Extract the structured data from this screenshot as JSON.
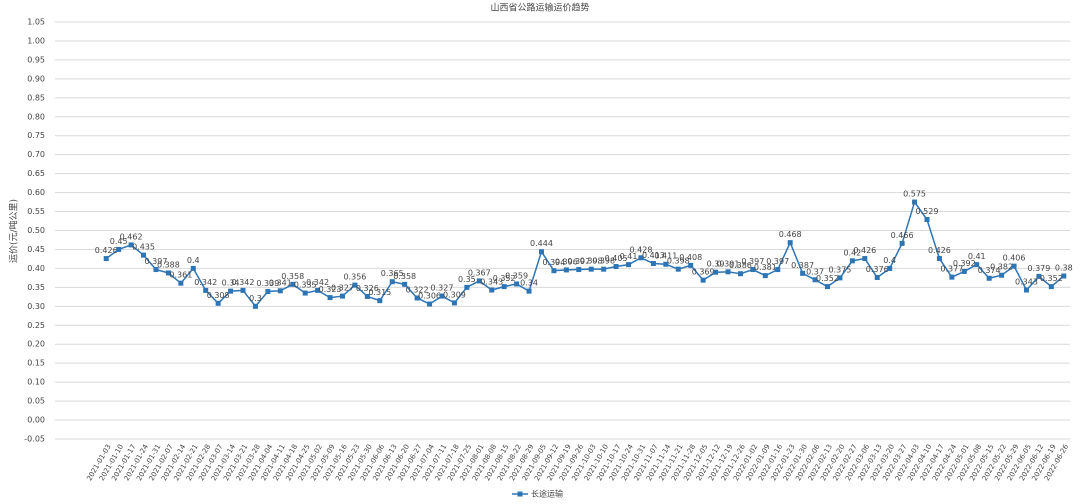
{
  "chart_data": {
    "type": "line",
    "title": "山西省公路运输运价趋势",
    "y_label": "运价(元/吨公里)",
    "categories": [
      "2021-01-03",
      "2021-01-10",
      "2021-01-17",
      "2021-01-24",
      "2021-01-31",
      "2021-02-07",
      "2021-02-14",
      "2021-02-21",
      "2021-02-28",
      "2021-03-07",
      "2021-03-14",
      "2021-03-21",
      "2021-03-28",
      "2021-04-04",
      "2021-04-11",
      "2021-04-18",
      "2021-04-25",
      "2021-05-02",
      "2021-05-09",
      "2021-05-16",
      "2021-05-23",
      "2021-05-30",
      "2021-06-06",
      "2021-06-13",
      "2021-06-20",
      "2021-06-27",
      "2021-07-04",
      "2021-07-11",
      "2021-07-18",
      "2021-07-25",
      "2021-08-01",
      "2021-08-08",
      "2021-08-15",
      "2021-08-22",
      "2021-08-29",
      "2021-09-05",
      "2021-09-12",
      "2021-09-19",
      "2021-09-26",
      "2021-10-03",
      "2021-10-10",
      "2021-10-17",
      "2021-10-24",
      "2021-10-31",
      "2021-11-07",
      "2021-11-14",
      "2021-11-21",
      "2021-11-28",
      "2021-12-05",
      "2021-12-12",
      "2021-12-19",
      "2021-12-26",
      "2022-01-02",
      "2022-01-09",
      "2022-01-16",
      "2022-01-23",
      "2022-01-30",
      "2022-02-06",
      "2022-02-13",
      "2022-02-20",
      "2022-02-27",
      "2022-03-06",
      "2022-03-13",
      "2022-03-20",
      "2022-03-27",
      "2022-04-03",
      "2022-04-10",
      "2022-04-17",
      "2022-04-24",
      "2022-05-01",
      "2022-05-08",
      "2022-05-15",
      "2022-05-22",
      "2022-05-29",
      "2022-06-05",
      "2022-06-12",
      "2022-06-19",
      "2022-06-26"
    ],
    "series": [
      {
        "name": "长途运输",
        "color": "#2e75b6",
        "values": [
          0.426,
          0.45,
          0.462,
          0.435,
          0.397,
          0.388,
          0.361,
          0.4,
          0.342,
          0.308,
          0.34,
          0.342,
          0.3,
          0.339,
          0.341,
          0.358,
          0.335,
          0.342,
          0.323,
          0.327,
          0.356,
          0.326,
          0.315,
          0.365,
          0.358,
          0.322,
          0.306,
          0.327,
          0.309,
          0.35,
          0.367,
          0.343,
          0.352,
          0.359,
          0.34,
          0.444,
          0.394,
          0.396,
          0.397,
          0.398,
          0.398,
          0.405,
          0.41,
          0.428,
          0.413,
          0.411,
          0.398,
          0.408,
          0.369,
          0.39,
          0.391,
          0.386,
          0.397,
          0.381,
          0.397,
          0.468,
          0.387,
          0.37,
          0.352,
          0.375,
          0.42,
          0.426,
          0.376,
          0.4,
          0.466,
          0.575,
          0.529,
          0.426,
          0.377,
          0.392,
          0.41,
          0.374,
          0.382,
          0.406,
          0.343,
          0.379,
          0.352,
          0.38
        ]
      }
    ],
    "ylim": [
      -0.05,
      1.05
    ],
    "yticks": [
      -0.05,
      {
        "value": 0,
        "label": "0.00"
      },
      0.05,
      {
        "value": 0.1,
        "label": "0.10"
      },
      0.15,
      {
        "value": 0.2,
        "label": "0.20"
      },
      0.25,
      {
        "value": 0.3,
        "label": "0.30"
      },
      0.35,
      {
        "value": 0.4,
        "label": "0.40"
      },
      0.45,
      {
        "value": 0.5,
        "label": "0.50"
      },
      0.55,
      {
        "value": 0.6,
        "label": "0.60"
      },
      0.65,
      {
        "value": 0.7,
        "label": "0.70"
      },
      0.75,
      {
        "value": 0.8,
        "label": "0.80"
      },
      0.85,
      {
        "value": 0.9,
        "label": "0.90"
      },
      0.95,
      {
        "value": 1,
        "label": "1.00"
      },
      1.05
    ],
    "grid": true,
    "legend": "bottom"
  }
}
